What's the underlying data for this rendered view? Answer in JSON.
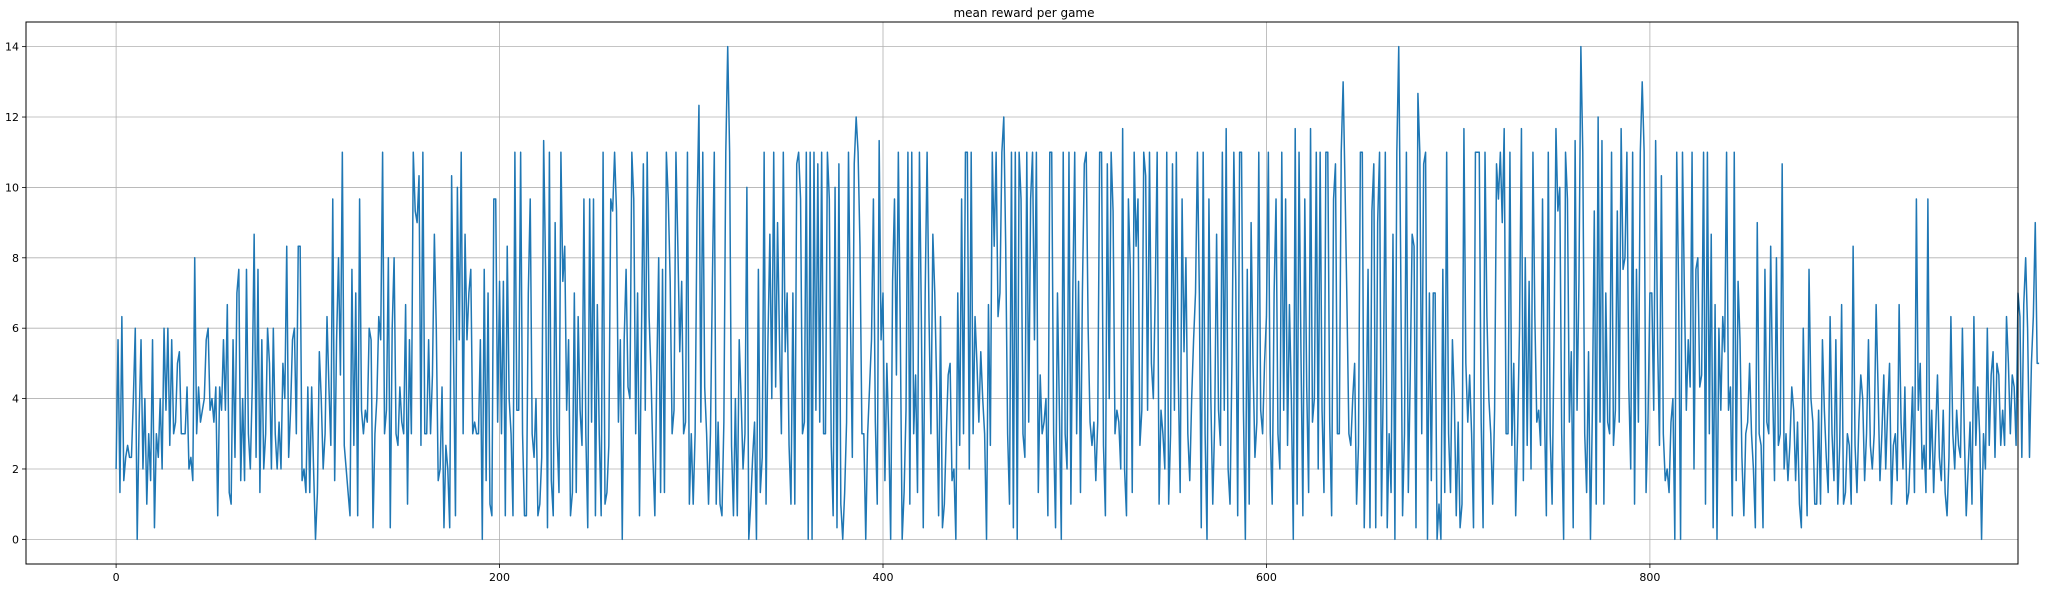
{
  "chart_data": {
    "type": "line",
    "title": "mean reward per game",
    "xlabel": "",
    "ylabel": "",
    "xlim": [
      -47,
      992
    ],
    "ylim": [
      -0.7,
      14.7
    ],
    "xticks": [
      0,
      200,
      400,
      600,
      800
    ],
    "yticks": [
      0,
      2,
      4,
      6,
      8,
      10,
      12,
      14
    ],
    "grid": true,
    "line_color": "#1f77b4",
    "series": [
      {
        "name": "mean reward",
        "x_start": 0,
        "x_step": 1,
        "values": [
          2,
          5.67,
          1.33,
          6.33,
          1.67,
          2.33,
          2.67,
          2.33,
          2.33,
          4,
          6,
          0,
          3.33,
          5.67,
          2,
          4,
          1,
          3,
          1.67,
          5.67,
          0.33,
          3,
          2.33,
          4,
          2,
          6,
          3.67,
          6,
          2.67,
          5.67,
          3,
          3.33,
          5,
          5.33,
          3,
          3,
          3,
          4.33,
          2,
          2.33,
          1.67,
          8,
          3,
          4.33,
          3.33,
          3.67,
          4,
          5.67,
          6,
          3.67,
          4,
          3.33,
          4.33,
          0.67,
          4.33,
          3.67,
          5.67,
          3.67,
          6.67,
          1.33,
          1,
          5.67,
          2.33,
          7,
          7.67,
          1.67,
          4,
          1.67,
          7.67,
          3,
          2,
          4.33,
          8.67,
          2.33,
          7.67,
          1.33,
          5.67,
          2,
          3,
          6,
          5,
          2,
          6,
          3,
          2,
          3.33,
          2,
          5,
          4,
          8.33,
          2.33,
          3.67,
          5.67,
          6,
          3,
          8.33,
          8.33,
          1.67,
          2,
          1.33,
          4.33,
          1.33,
          4.33,
          2,
          0,
          1.33,
          5.33,
          4,
          2,
          3,
          6.33,
          4.33,
          2.67,
          9.67,
          1.67,
          5.67,
          8,
          4.67,
          11,
          2.67,
          2,
          1.33,
          0.67,
          7.67,
          2.67,
          7,
          0.67,
          9.67,
          3.67,
          3,
          3.67,
          3.33,
          6,
          5.67,
          0.33,
          3,
          4,
          6.33,
          5.67,
          11,
          3,
          3.67,
          8,
          0.33,
          6,
          8,
          3,
          2.67,
          4.33,
          3.33,
          3,
          6.67,
          1,
          5.67,
          3,
          11,
          9.33,
          9,
          10.33,
          2.67,
          11,
          3,
          3,
          5.67,
          3,
          4.67,
          8.67,
          6,
          1.67,
          2,
          4.33,
          0.33,
          2.67,
          2,
          0.33,
          10.33,
          5.33,
          0.67,
          10,
          5.67,
          11,
          3,
          8.67,
          5.67,
          7,
          7.67,
          3,
          3.33,
          3,
          3,
          5.67,
          0,
          7.67,
          1.67,
          7,
          1,
          0.67,
          9.67,
          9.67,
          3.33,
          7.33,
          3,
          7.33,
          0.67,
          8.33,
          4,
          3,
          0.67,
          11,
          3.67,
          3.67,
          11,
          3,
          0.67,
          0.67,
          7,
          9.67,
          3,
          2.33,
          4,
          0.67,
          1,
          2.33,
          11.33,
          7.67,
          0.33,
          11,
          1.67,
          0.67,
          9,
          3,
          1.33,
          11,
          7.33,
          8.33,
          3.67,
          5.67,
          0.67,
          1.33,
          7,
          1.33,
          6.33,
          3.67,
          2.67,
          9.67,
          3,
          0.33,
          9.67,
          3.33,
          9.67,
          0.67,
          6.67,
          3,
          0.67,
          11,
          1,
          1.33,
          2.67,
          9.67,
          9.33,
          11,
          9.33,
          3.33,
          5.67,
          0,
          5.67,
          7.67,
          4.33,
          4,
          11,
          9.67,
          3,
          7,
          0.67,
          5.67,
          10.67,
          3.67,
          11,
          6.33,
          4.67,
          2.33,
          0.67,
          4.67,
          8,
          1.33,
          7.67,
          1.33,
          11,
          9.67,
          7.33,
          3,
          3.67,
          11,
          8.33,
          5.33,
          7.33,
          3,
          3.33,
          11,
          1,
          3,
          1,
          3,
          9.33,
          12.33,
          3.33,
          11,
          4.33,
          3,
          1,
          3,
          7.33,
          11,
          1,
          3.33,
          1,
          0.67,
          3.33,
          11,
          14,
          11,
          2.67,
          0.67,
          4,
          0.67,
          5.67,
          4,
          2,
          3,
          10,
          0,
          1,
          2.33,
          3.33,
          0,
          7.67,
          1.33,
          2.33,
          11,
          1,
          5.67,
          8.67,
          4,
          11,
          4.33,
          9,
          5.67,
          3,
          11,
          5.33,
          7,
          2.67,
          1,
          7,
          1,
          10.67,
          11,
          9.67,
          3,
          3.33,
          11,
          0,
          11,
          0,
          11,
          3.67,
          10.67,
          3.33,
          11,
          3,
          3,
          11,
          9.67,
          2.67,
          0.67,
          10,
          0.33,
          10.67,
          1,
          0,
          1.33,
          3.33,
          11,
          6.33,
          2.33,
          10.67,
          12,
          11,
          8.33,
          3,
          3,
          0,
          3,
          4.33,
          5.67,
          9.67,
          3.33,
          1,
          11.33,
          5.67,
          7,
          1.67,
          5,
          3,
          0,
          7.33,
          9.67,
          4.67,
          11,
          6,
          0,
          1.33,
          3.67,
          11,
          1,
          11,
          3,
          4.67,
          1.33,
          11,
          6.33,
          0.33,
          7,
          11,
          6.33,
          3,
          8.67,
          7,
          4.33,
          0.67,
          6.33,
          0.33,
          1,
          3,
          4.67,
          5,
          1.67,
          2,
          0,
          7,
          2.67,
          9.67,
          3,
          11,
          11,
          2,
          11,
          3,
          6.33,
          5,
          3.33,
          5.33,
          4,
          3,
          0,
          6.67,
          2.67,
          11,
          8.33,
          11,
          6.33,
          7,
          11,
          12,
          8.33,
          3,
          1,
          11,
          0.33,
          11,
          0,
          11,
          9.67,
          3,
          2.33,
          11,
          3.33,
          9.67,
          11,
          5.67,
          11,
          1.33,
          4.67,
          3,
          3.33,
          4,
          0.67,
          11,
          11,
          3,
          0.33,
          7,
          3.67,
          0,
          11,
          3,
          2,
          11,
          1,
          7,
          11,
          3,
          7.33,
          1.33,
          7,
          10.67,
          11,
          6,
          3.33,
          2.67,
          3.33,
          1.67,
          3.33,
          11,
          11,
          2.67,
          0.67,
          10.67,
          4,
          11,
          9.33,
          3,
          3.67,
          3.33,
          2,
          11.67,
          2,
          0.67,
          9.67,
          7.67,
          1.33,
          11,
          8.33,
          9.67,
          2.67,
          3.67,
          11,
          10.33,
          3.67,
          11,
          5,
          4,
          7,
          11,
          1,
          3.67,
          3,
          2,
          11,
          1,
          3,
          10.67,
          3.67,
          11,
          4.67,
          1.33,
          9.67,
          5.33,
          8,
          3,
          1.67,
          4,
          5.67,
          7,
          11,
          7,
          0.33,
          11,
          3,
          0,
          9.67,
          4,
          1,
          3.33,
          8.67,
          3.67,
          2.67,
          11,
          3.67,
          11.67,
          2,
          1,
          5,
          11,
          7.33,
          0.67,
          11,
          11,
          3.67,
          0,
          7.67,
          1,
          9,
          5,
          2.33,
          3.33,
          11,
          3.67,
          3,
          5,
          6.33,
          11,
          3,
          1,
          7,
          9.67,
          3,
          2,
          11,
          3.67,
          9.67,
          2.67,
          6.67,
          4,
          0,
          11.67,
          1,
          11,
          5.33,
          0.67,
          9.67,
          4.33,
          1.33,
          11.67,
          3.33,
          4,
          11,
          2,
          11,
          3.67,
          1.33,
          11,
          11,
          3.33,
          0.67,
          9.67,
          10.67,
          3,
          3,
          11,
          13,
          10,
          6.67,
          3,
          2.67,
          4,
          5,
          1,
          2.67,
          11,
          11,
          0.33,
          3.33,
          7.67,
          0.33,
          9.33,
          10.67,
          0.33,
          9,
          11,
          0.67,
          4.67,
          11,
          0.33,
          3,
          1.33,
          8.67,
          0,
          11,
          14,
          8,
          0.67,
          3,
          11,
          1.33,
          4.67,
          8.67,
          8.33,
          0.33,
          12.67,
          11,
          3,
          10.67,
          11,
          0,
          7,
          1.67,
          7,
          7,
          0,
          1,
          0,
          7.67,
          1.33,
          11,
          3,
          1.33,
          5.67,
          4,
          0.67,
          3.33,
          0.33,
          1,
          11.67,
          5,
          3.33,
          4.67,
          3,
          0.33,
          11,
          11,
          11,
          3.33,
          0.33,
          11,
          6.33,
          4,
          3,
          1,
          3.67,
          10.67,
          9.67,
          11,
          9,
          11.67,
          3,
          3,
          11,
          2.67,
          5,
          0.67,
          3,
          6,
          11.67,
          1.67,
          8,
          2.67,
          7.33,
          2,
          11,
          6.33,
          3.33,
          3.67,
          2.67,
          9.67,
          3.67,
          0.67,
          11,
          3,
          1,
          5.67,
          11.67,
          9.33,
          10,
          3,
          0,
          11,
          9.67,
          3.33,
          5.33,
          0.33,
          11.33,
          3.67,
          7.33,
          14,
          11,
          3,
          1.33,
          5.33,
          0,
          3.67,
          9.33,
          1,
          12,
          3.33,
          11.33,
          1,
          7,
          3.33,
          3,
          11,
          2.67,
          3.67,
          9.33,
          3.33,
          11.67,
          7.67,
          8,
          11,
          4.33,
          2,
          11,
          1,
          7.67,
          3.33,
          11,
          13,
          11,
          1.33,
          3.33,
          7,
          7,
          3.67,
          11.33,
          5.67,
          2.67,
          10.33,
          3,
          1.67,
          2,
          1.33,
          3.33,
          4,
          0,
          11,
          7,
          0,
          11,
          7,
          3.67,
          5.67,
          4.33,
          11,
          2,
          7.67,
          8,
          4.33,
          4.67,
          11,
          1,
          11,
          3,
          8.67,
          0.33,
          6.67,
          0,
          6,
          3.67,
          6.33,
          5.33,
          11,
          3.67,
          4.33,
          0.67,
          11,
          1.67,
          7.33,
          5.67,
          2.33,
          0.67,
          3,
          3.33,
          5,
          3,
          2,
          0.33,
          9,
          3,
          2.67,
          0.33,
          7.67,
          3.33,
          3,
          8.33,
          4.33,
          1.67,
          8,
          2.67,
          3,
          10.67,
          2,
          3,
          1.67,
          2.67,
          4.33,
          3.67,
          1.67,
          3.33,
          1,
          0.33,
          6,
          3,
          0.67,
          7.67,
          4,
          3.33,
          1,
          1,
          3.67,
          1,
          5.67,
          3.67,
          2.33,
          1.33,
          6.33,
          3,
          1.67,
          5.67,
          1,
          2.67,
          6.67,
          1,
          1.33,
          3,
          2.67,
          1,
          8.33,
          2.67,
          1.33,
          3.33,
          4.67,
          4,
          1.67,
          3,
          5.67,
          2.67,
          2,
          3,
          6.67,
          4.33,
          1.67,
          3,
          4.67,
          2,
          3.67,
          5,
          1,
          2.67,
          3,
          1.67,
          6.67,
          3.33,
          2,
          4.33,
          1,
          1.33,
          2.67,
          4.33,
          1.33,
          9.67,
          3.67,
          5,
          2,
          2.67,
          1.33,
          9.67,
          2,
          3.67,
          1.33,
          3,
          4.67,
          2.33,
          1.67,
          3.67,
          1.33,
          0.67,
          2.33,
          6.33,
          3,
          2,
          3.67,
          2.67,
          2.33,
          6,
          3,
          0.67,
          2,
          3.33,
          1,
          6.33,
          2.67,
          4.33,
          3,
          0,
          3,
          2,
          6,
          2.67,
          4.67,
          5.33,
          2.33,
          5,
          4.67,
          2.67,
          3.67,
          2.67,
          6.33,
          5,
          3,
          4.67,
          4.33,
          2.67,
          7,
          6.33,
          2.33,
          6.67,
          8,
          6,
          2.33,
          5,
          6.33,
          9,
          5,
          5
        ]
      }
    ]
  }
}
